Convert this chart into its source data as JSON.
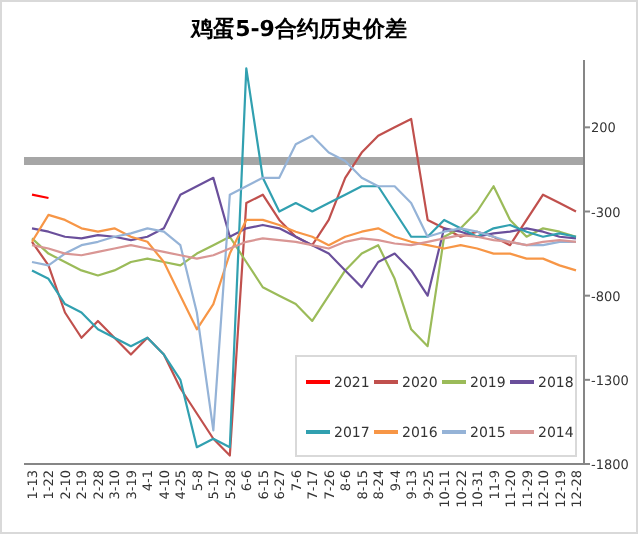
{
  "chart_data": {
    "type": "line",
    "title": "鸡蛋5-9合约历史价差",
    "categories": [
      "1-13",
      "1-22",
      "2-10",
      "2-19",
      "2-28",
      "3-10",
      "3-19",
      "4-1",
      "4-10",
      "4-25",
      "5-8",
      "5-17",
      "5-28",
      "6-6",
      "6-15",
      "6-27",
      "7-6",
      "7-17",
      "7-26",
      "8-6",
      "8-15",
      "8-24",
      "9-4",
      "9-13",
      "9-25",
      "10-11",
      "10-22",
      "10-31",
      "11-9",
      "11-20",
      "11-29",
      "12-10",
      "12-19",
      "12-28"
    ],
    "series": [
      {
        "name": "2021",
        "color": "#ff0000",
        "values": [
          -200,
          -220,
          null,
          null,
          null,
          null,
          null,
          null,
          null,
          null,
          null,
          null,
          null,
          null,
          null,
          null,
          null,
          null,
          null,
          null,
          null,
          null,
          null,
          null,
          null,
          null,
          null,
          null,
          null,
          null,
          null,
          null,
          null,
          null
        ]
      },
      {
        "name": "2020",
        "color": "#c0504d",
        "values": [
          -480,
          -620,
          -900,
          -1050,
          -950,
          -1050,
          -1150,
          -1050,
          -1150,
          -1350,
          -1500,
          -1650,
          -1750,
          -250,
          -200,
          -350,
          -450,
          -500,
          -350,
          -100,
          50,
          150,
          200,
          250,
          -350,
          -400,
          -450,
          -420,
          -450,
          -500,
          -350,
          -200,
          -250,
          -300
        ]
      },
      {
        "name": "2019",
        "color": "#9bbb59",
        "values": [
          -460,
          -550,
          -600,
          -650,
          -680,
          -650,
          -600,
          -580,
          -600,
          -620,
          -550,
          -500,
          -450,
          -600,
          -750,
          -800,
          -850,
          -950,
          -800,
          -650,
          -550,
          -500,
          -700,
          -1000,
          -1100,
          -450,
          -400,
          -300,
          -150,
          -350,
          -450,
          -400,
          -420,
          -450
        ]
      },
      {
        "name": "2018",
        "color": "#6a4f9b",
        "values": [
          -400,
          -420,
          -450,
          -460,
          -440,
          -450,
          -470,
          -450,
          -400,
          -200,
          -150,
          -100,
          -450,
          -400,
          -380,
          -400,
          -450,
          -500,
          -550,
          -650,
          -750,
          -600,
          -550,
          -650,
          -800,
          -400,
          -420,
          -450,
          -430,
          -420,
          -400,
          -420,
          -450,
          -460
        ]
      },
      {
        "name": "2017",
        "color": "#31a0b0",
        "values": [
          -650,
          -700,
          -850,
          -900,
          -1000,
          -1050,
          -1100,
          -1050,
          -1150,
          -1300,
          -1700,
          -1650,
          -1700,
          550,
          -100,
          -300,
          -250,
          -300,
          -250,
          -200,
          -150,
          -150,
          -300,
          -450,
          -450,
          -350,
          -400,
          -450,
          -400,
          -380,
          -420,
          -450,
          -430,
          -450
        ]
      },
      {
        "name": "2016",
        "color": "#f79646",
        "values": [
          -480,
          -320,
          -350,
          -400,
          -420,
          -400,
          -450,
          -480,
          -600,
          -800,
          -1000,
          -850,
          -550,
          -350,
          -350,
          -380,
          -420,
          -450,
          -500,
          -450,
          -420,
          -400,
          -450,
          -480,
          -500,
          -520,
          -500,
          -520,
          -550,
          -550,
          -580,
          -580,
          -620,
          -650
        ]
      },
      {
        "name": "2015",
        "color": "#95b3d7",
        "values": [
          -600,
          -620,
          -550,
          -500,
          -480,
          -450,
          -430,
          -400,
          -420,
          -500,
          -900,
          -1600,
          -200,
          -150,
          -100,
          -100,
          100,
          150,
          50,
          0,
          -100,
          -150,
          -150,
          -250,
          -450,
          -420,
          -400,
          -420,
          -450,
          -480,
          -500,
          -500,
          -480,
          -480
        ]
      },
      {
        "name": "2014",
        "color": "#d99694",
        "values": [
          -500,
          -520,
          -550,
          -560,
          -540,
          -520,
          -500,
          -520,
          -540,
          -560,
          -580,
          -560,
          -520,
          -480,
          -460,
          -470,
          -480,
          -500,
          -520,
          -480,
          -460,
          -470,
          -490,
          -500,
          -480,
          -460,
          -440,
          -450,
          -470,
          -480,
          -500,
          -480,
          -470,
          -480
        ]
      }
    ],
    "ylim": [
      -1800,
      600
    ],
    "yticks": [
      200,
      -300,
      -800,
      -1300,
      -1800
    ],
    "ref_lines": [
      {
        "axis": "y",
        "value": 0,
        "color": "#a6a6a6"
      }
    ],
    "legend": "bottom right",
    "grid": false
  }
}
